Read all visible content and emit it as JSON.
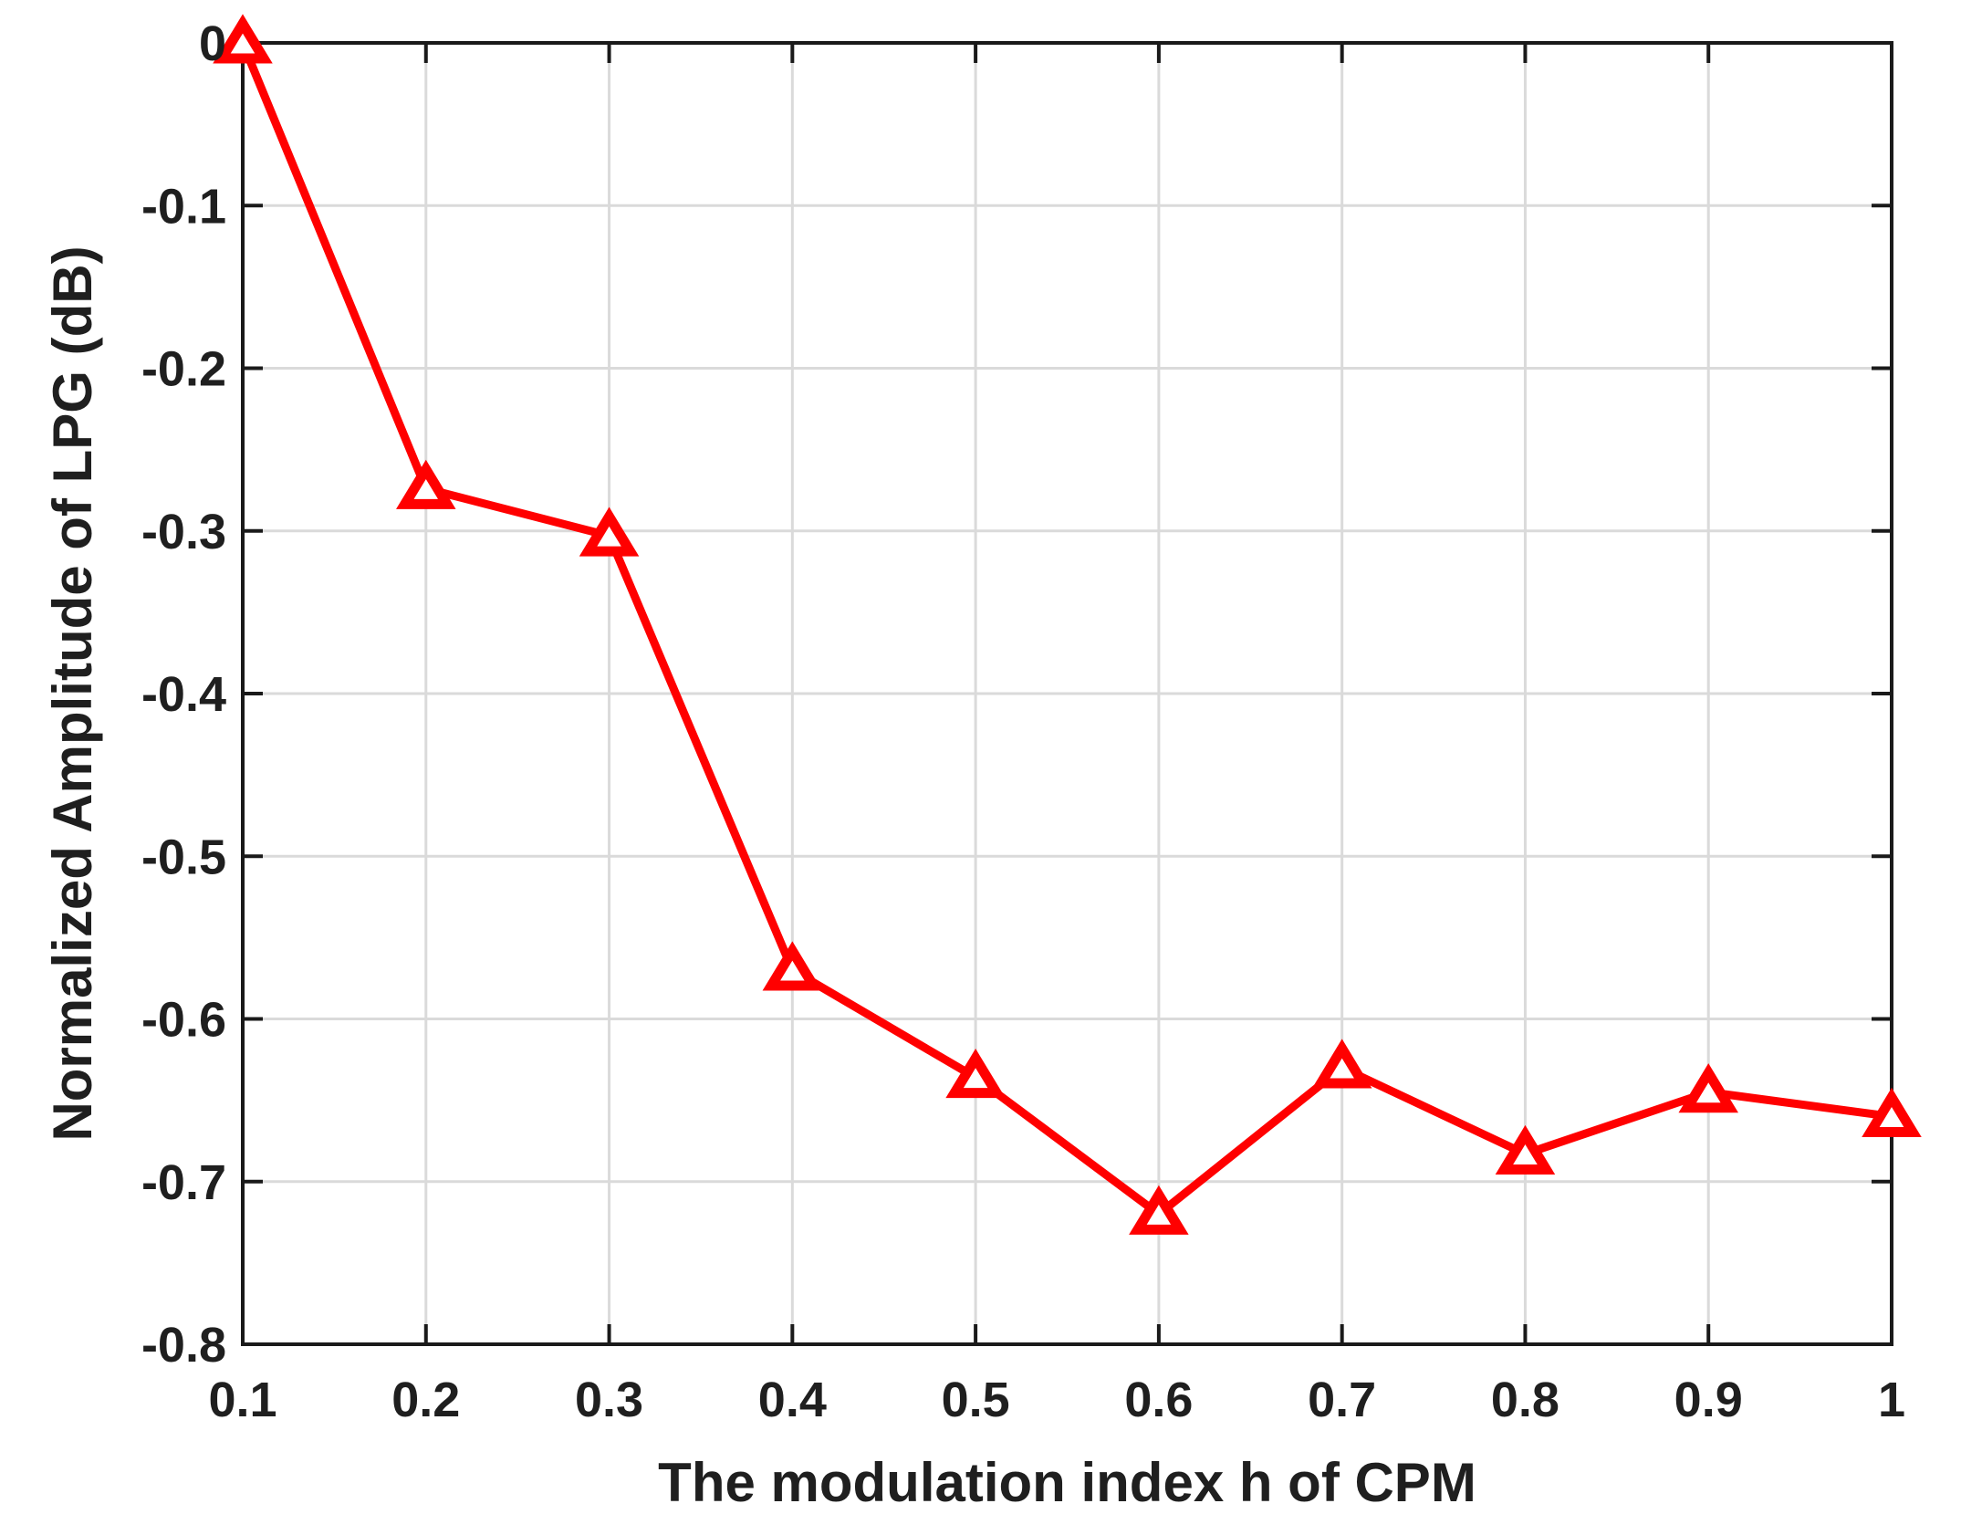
{
  "figure": {
    "background_color": "#ffffff",
    "line_color": "#ff0000",
    "marker_face_color": "#ffffff",
    "axis_color": "#1a1a1a",
    "grid_color": "#dadada",
    "text_color": "#1f1f1f"
  },
  "chart_data": {
    "type": "line",
    "title": "",
    "xlabel": "The modulation index h of CPM",
    "ylabel": "Normalized Amplitude of LPG (dB)",
    "series": [
      {
        "name": "Normalized amplitude of LPG",
        "marker": "triangle-up",
        "x": [
          0.1,
          0.2,
          0.3,
          0.4,
          0.5,
          0.6,
          0.7,
          0.8,
          0.9,
          1.0
        ],
        "y": [
          0,
          -0.274,
          -0.303,
          -0.57,
          -0.636,
          -0.72,
          -0.63,
          -0.683,
          -0.645,
          -0.66
        ]
      }
    ],
    "xlim": [
      0.1,
      1
    ],
    "ylim": [
      -0.8,
      0
    ],
    "x_ticks": [
      0.1,
      0.2,
      0.3,
      0.4,
      0.5,
      0.6,
      0.7,
      0.8,
      0.9,
      1
    ],
    "x_tick_labels": [
      "0.1",
      "0.2",
      "0.3",
      "0.4",
      "0.5",
      "0.6",
      "0.7",
      "0.8",
      "0.9",
      "1"
    ],
    "y_ticks": [
      0,
      -0.1,
      -0.2,
      -0.3,
      -0.4,
      -0.5,
      -0.6,
      -0.7,
      -0.8
    ],
    "y_tick_labels": [
      "0",
      "-0.1",
      "-0.2",
      "-0.3",
      "-0.4",
      "-0.5",
      "-0.6",
      "-0.7",
      "-0.8"
    ],
    "grid": true,
    "legend": null
  }
}
